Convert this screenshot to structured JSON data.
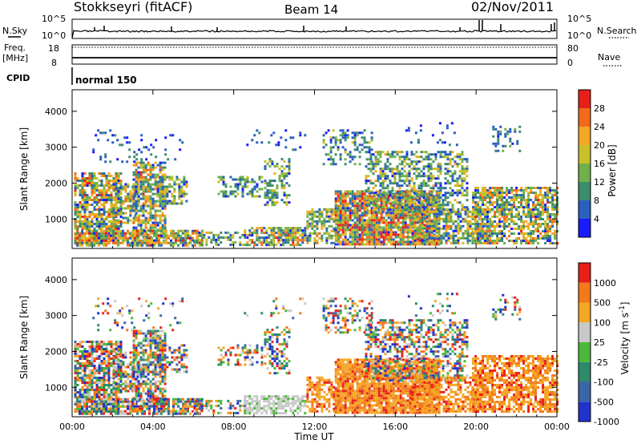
{
  "header": {
    "station": "Stokkseyri (fitACF)",
    "beam": "Beam 14",
    "date": "02/Nov/2011"
  },
  "aux_panels": {
    "nsky": {
      "label": "N.Sky",
      "left_ticks": [
        "10^5",
        "10^0"
      ],
      "right_ticks": [
        "10^5",
        "10^0"
      ],
      "right_label": "N.Search",
      "right_legend_marker": "dotted"
    },
    "freq": {
      "label": "Freq.",
      "unit": "[MHz]",
      "left_ticks": [
        "18",
        "8"
      ],
      "right_ticks": [
        "80",
        "0"
      ],
      "right_label": "Nave",
      "right_legend_marker": "dotted"
    },
    "cpid": {
      "label": "CPID",
      "value": "normal 150"
    }
  },
  "chart_data": [
    {
      "type": "heatmap",
      "quantity": "Power",
      "ylabel": "Slant Range [km]",
      "yticks": [
        "1000",
        "2000",
        "3000",
        "4000"
      ],
      "ylim": [
        180,
        4600
      ],
      "xlim": [
        0,
        24
      ],
      "colorbar": {
        "label": "Power [dB]",
        "tick_labels": [
          "4",
          "8",
          "12",
          "16",
          "20",
          "24",
          "28"
        ],
        "colors": [
          "#1a1aff",
          "#2a5fbf",
          "#3c8c6e",
          "#6fb04a",
          "#c8c02a",
          "#f5a623",
          "#f26a1b",
          "#e8201a"
        ]
      }
    },
    {
      "type": "heatmap",
      "quantity": "Velocity",
      "ylabel": "Slant Range [km]",
      "yticks": [
        "1000",
        "2000",
        "3000",
        "4000"
      ],
      "ylim": [
        180,
        4600
      ],
      "xlim": [
        0,
        24
      ],
      "xlabel": "Time UT",
      "xticks": [
        "00:00",
        "04:00",
        "08:00",
        "12:00",
        "16:00",
        "20:00",
        "00:00"
      ],
      "colorbar": {
        "label": "Velocity [m s",
        "label_sup": "-1",
        "label_close": "]",
        "tick_labels": [
          "1000",
          "500",
          "100",
          "25",
          "-25",
          "-100",
          "-500",
          "-1000"
        ],
        "colors": [
          "#2233cc",
          "#3a66a8",
          "#2d8a6a",
          "#4cb83a",
          "#c8c8c8",
          "#f5a623",
          "#f27a1b",
          "#e8201a"
        ]
      }
    }
  ]
}
